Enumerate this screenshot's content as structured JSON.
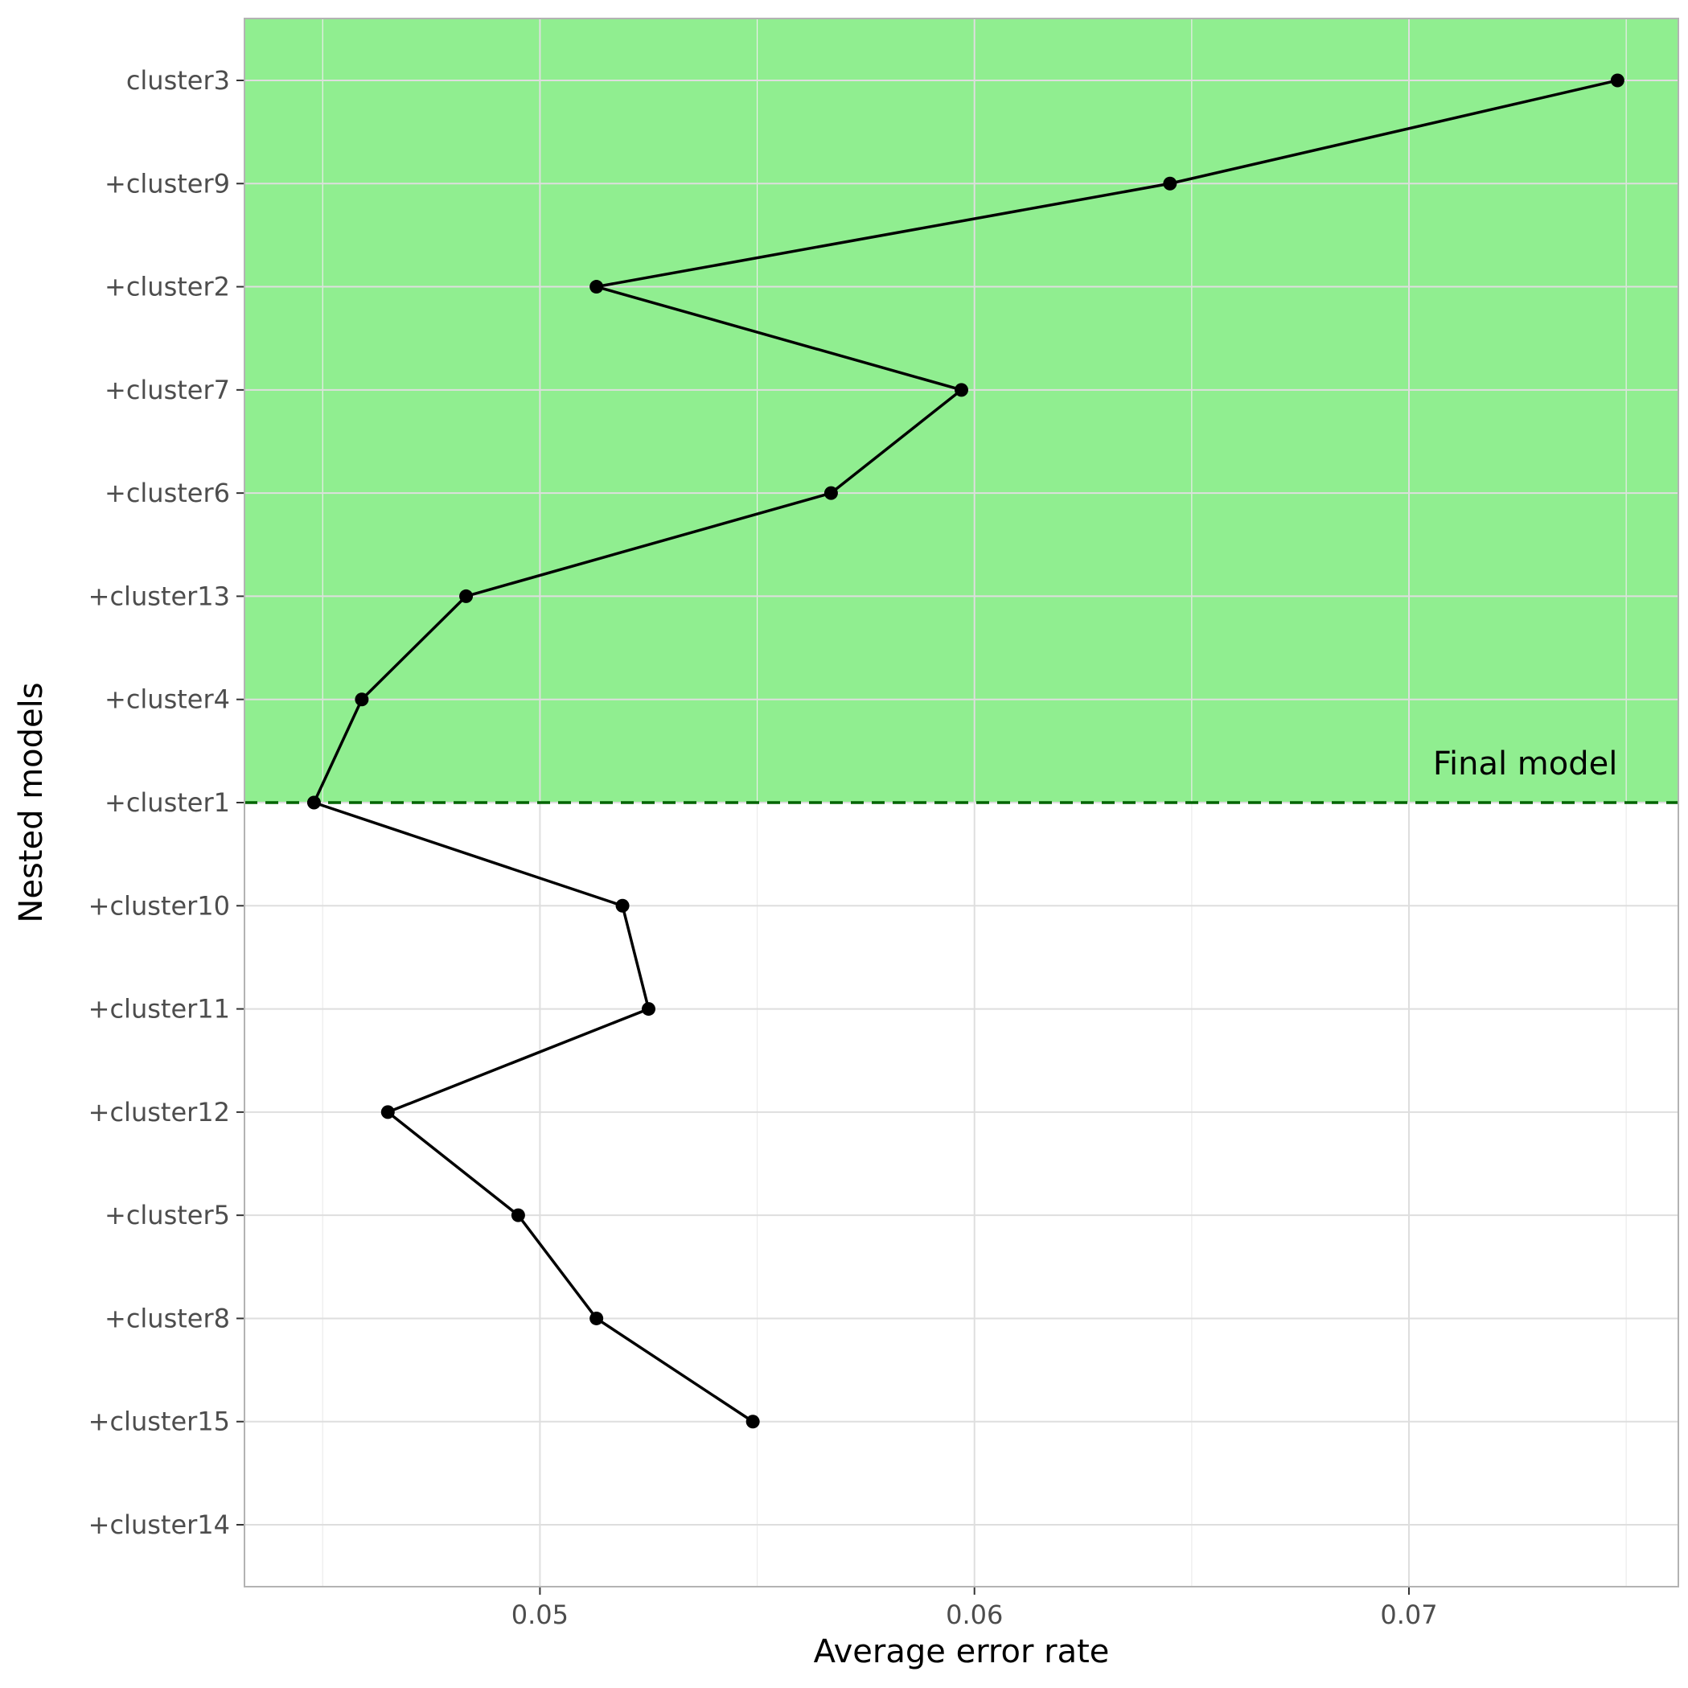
{
  "chart_data": {
    "type": "line",
    "xlabel": "Average error rate",
    "ylabel": "Nested models",
    "xlim": [
      0.0432,
      0.0762
    ],
    "x_ticks": [
      0.05,
      0.06,
      0.07
    ],
    "x_tick_labels": [
      "0.05",
      "0.06",
      "0.07"
    ],
    "categories": [
      "cluster3",
      "+cluster9",
      "+cluster2",
      "+cluster7",
      "+cluster6",
      "+cluster13",
      "+cluster4",
      "+cluster1",
      "+cluster10",
      "+cluster11",
      "+cluster12",
      "+cluster5",
      "+cluster8",
      "+cluster15",
      "+cluster14"
    ],
    "values": [
      0.0748,
      0.0645,
      0.0513,
      0.0597,
      0.0567,
      0.0483,
      0.0459,
      0.0448,
      0.0519,
      0.0525,
      0.0465,
      0.0495,
      0.0513,
      0.0549,
      null
    ],
    "final_model": "+cluster1",
    "annotation": "Final model",
    "grid": true,
    "colors": {
      "highlight": "#90ee90",
      "threshold_line": "#006400",
      "line": "#000000",
      "grid": "#dedede",
      "panel_border": "#b3b3b3"
    }
  }
}
